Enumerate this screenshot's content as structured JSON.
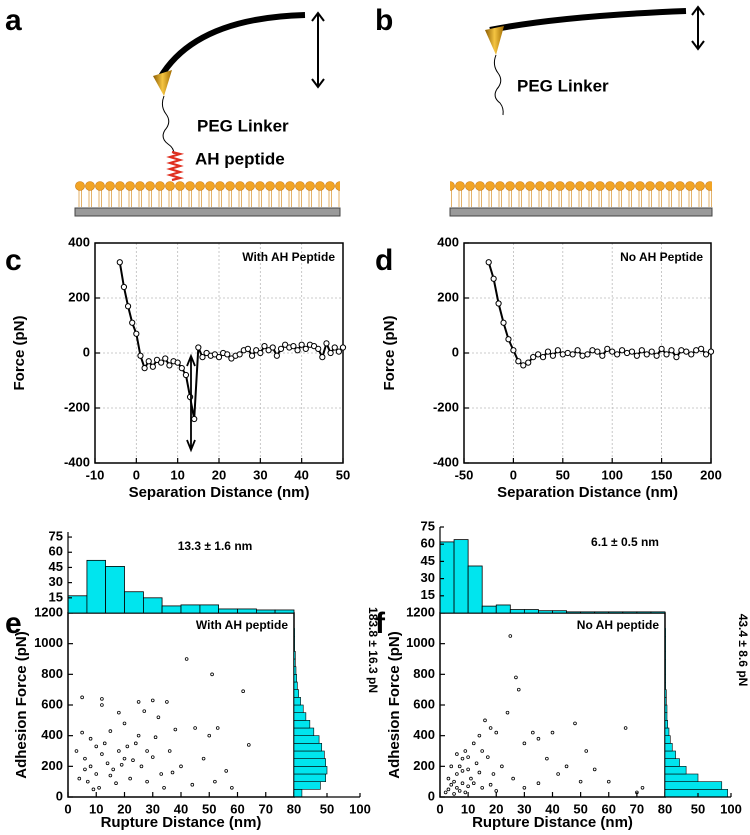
{
  "diagrams": [
    {
      "panel": "a",
      "labels": [
        "PEG Linker",
        "AH peptide"
      ]
    },
    {
      "panel": "b",
      "labels": [
        "PEG Linker"
      ]
    }
  ],
  "chart_data": [
    {
      "type": "line",
      "panel": "c",
      "annotation": "With AH Peptide",
      "xlabel": "Separation Distance (nm)",
      "ylabel": "Force (pN)",
      "x": [
        -4,
        -3,
        -2,
        -1,
        0,
        1,
        2,
        3,
        4,
        5,
        6,
        7,
        8,
        9,
        10,
        11,
        12,
        13,
        14,
        15,
        16,
        17,
        18,
        19,
        20,
        21,
        22,
        23,
        24,
        25,
        26,
        27,
        28,
        29,
        30,
        31,
        32,
        33,
        34,
        35,
        36,
        37,
        38,
        39,
        40,
        41,
        42,
        43,
        44,
        45,
        46,
        47,
        48,
        49,
        50
      ],
      "series": [
        {
          "color": "#000000",
          "values": [
            330,
            240,
            170,
            110,
            70,
            -10,
            -55,
            -30,
            -50,
            -25,
            -35,
            -20,
            -45,
            -30,
            -35,
            -55,
            -80,
            -160,
            -240,
            20,
            -15,
            0,
            -10,
            -5,
            -15,
            0,
            -5,
            -20,
            -10,
            -5,
            10,
            15,
            -10,
            10,
            0,
            25,
            10,
            20,
            -10,
            15,
            30,
            20,
            25,
            10,
            30,
            15,
            30,
            25,
            15,
            -15,
            35,
            0,
            20,
            5,
            20
          ]
        }
      ],
      "xlim": [
        -10,
        50
      ],
      "ylim": [
        -400,
        400
      ],
      "xticks": [
        -10,
        0,
        10,
        20,
        30,
        40,
        50
      ],
      "yticks": [
        -400,
        -200,
        0,
        200,
        400
      ],
      "grid": true
    },
    {
      "type": "line",
      "panel": "d",
      "annotation": "No AH Peptide",
      "xlabel": "Separation Distance (nm)",
      "ylabel": "Force (pN)",
      "x": [
        -25,
        -20,
        -15,
        -10,
        -5,
        0,
        5,
        10,
        15,
        20,
        25,
        30,
        35,
        40,
        45,
        50,
        55,
        60,
        65,
        70,
        75,
        80,
        85,
        90,
        95,
        100,
        105,
        110,
        115,
        120,
        125,
        130,
        135,
        140,
        145,
        150,
        155,
        160,
        165,
        170,
        175,
        180,
        185,
        190,
        195,
        200
      ],
      "series": [
        {
          "color": "#000000",
          "values": [
            330,
            270,
            180,
            110,
            50,
            10,
            -30,
            -45,
            -35,
            -15,
            -5,
            -15,
            5,
            -10,
            10,
            -5,
            0,
            -5,
            10,
            -10,
            -5,
            10,
            5,
            -10,
            15,
            5,
            -5,
            10,
            0,
            5,
            -10,
            10,
            -5,
            5,
            -10,
            15,
            -5,
            10,
            -15,
            10,
            5,
            -5,
            10,
            15,
            -5,
            5
          ]
        }
      ],
      "xlim": [
        -50,
        200
      ],
      "ylim": [
        -400,
        400
      ],
      "xticks": [
        -50,
        0,
        50,
        100,
        150,
        200
      ],
      "yticks": [
        -400,
        -200,
        0,
        200,
        400
      ],
      "grid": true
    },
    {
      "type": "scatter",
      "panel": "e",
      "annotation": "With AH peptide",
      "xlabel": "Rupture Distance (nm)",
      "ylabel": "Adhesion Force (pN)",
      "color": "#000000",
      "x": [
        5,
        12,
        5,
        8,
        10,
        15,
        12,
        18,
        20,
        25,
        27,
        30,
        32,
        35,
        38,
        42,
        45,
        51,
        53,
        62,
        64,
        6,
        8,
        10,
        12,
        14,
        16,
        18,
        20,
        22,
        24,
        26,
        28,
        30,
        33,
        36,
        40,
        44,
        48,
        52,
        56,
        7,
        9,
        11,
        13,
        15,
        17,
        19,
        21,
        23,
        25,
        28,
        31,
        34,
        37,
        4,
        6,
        3,
        50,
        58
      ],
      "values": [
        650,
        640,
        420,
        380,
        330,
        430,
        600,
        550,
        480,
        620,
        560,
        630,
        520,
        620,
        440,
        900,
        450,
        800,
        450,
        690,
        340,
        250,
        200,
        150,
        280,
        220,
        180,
        300,
        250,
        120,
        350,
        200,
        100,
        260,
        150,
        300,
        200,
        80,
        250,
        100,
        170,
        100,
        50,
        60,
        350,
        140,
        90,
        210,
        330,
        240,
        400,
        300,
        390,
        60,
        160,
        120,
        180,
        300,
        400,
        60
      ],
      "xlim": [
        0,
        80
      ],
      "ylim": [
        0,
        1200
      ],
      "xticks": [
        0,
        10,
        20,
        30,
        40,
        50,
        60,
        70,
        80
      ],
      "yticks": [
        0,
        200,
        400,
        600,
        800,
        1000,
        1200
      ],
      "top_histogram": {
        "bins": [
          0,
          6.7,
          13.3,
          20,
          26.7,
          33.3,
          40,
          46.7,
          53.3,
          60,
          66.7,
          73.3,
          80
        ],
        "counts": [
          17,
          52,
          46,
          21,
          15,
          7,
          8,
          8,
          4,
          4,
          3,
          3
        ],
        "color": "#00e5ee",
        "ylim": [
          0,
          80
        ],
        "yticks": [
          15,
          30,
          45,
          60,
          75
        ],
        "annotation": "13.3 ± 1.6 nm"
      },
      "right_histogram": {
        "bins": [
          0,
          50,
          100,
          150,
          200,
          250,
          300,
          350,
          400,
          450,
          500,
          550,
          600,
          650,
          700,
          750,
          800,
          850,
          900,
          950,
          1000,
          1050,
          1100,
          1150,
          1200
        ],
        "counts": [
          12,
          40,
          48,
          50,
          48,
          46,
          42,
          38,
          30,
          24,
          18,
          14,
          10,
          7,
          5,
          4,
          3,
          2,
          2,
          1,
          1,
          1,
          0,
          0
        ],
        "color": "#00e5ee",
        "xlim": [
          0,
          100
        ],
        "xticks": [
          50,
          100
        ],
        "annotation": "183.8 ± 16.3 pN"
      }
    },
    {
      "type": "scatter",
      "panel": "f",
      "annotation": "No AH peptide",
      "xlabel": "Rupture Distance (nm)",
      "ylabel": "Adhesion Force (pN)",
      "color": "#000000",
      "x": [
        5,
        6,
        7,
        8,
        9,
        10,
        11,
        12,
        13,
        14,
        15,
        16,
        17,
        18,
        19,
        20,
        22,
        24,
        25,
        27,
        28,
        30,
        33,
        35,
        38,
        40,
        42,
        45,
        48,
        50,
        52,
        55,
        60,
        66,
        70,
        3,
        4,
        5,
        6,
        7,
        8,
        9,
        10,
        4,
        6,
        8,
        10,
        12,
        14,
        3,
        2,
        15,
        18,
        20,
        26,
        30,
        35,
        72
      ],
      "values": [
        100,
        150,
        200,
        250,
        300,
        180,
        120,
        350,
        220,
        400,
        300,
        500,
        260,
        450,
        150,
        420,
        200,
        550,
        1050,
        780,
        700,
        350,
        420,
        380,
        250,
        420,
        150,
        200,
        480,
        100,
        300,
        180,
        100,
        450,
        30,
        50,
        80,
        20,
        60,
        40,
        90,
        30,
        70,
        200,
        280,
        170,
        260,
        90,
        160,
        120,
        30,
        60,
        80,
        40,
        120,
        60,
        90,
        60
      ],
      "xlim": [
        0,
        80
      ],
      "ylim": [
        0,
        1200
      ],
      "xticks": [
        0,
        10,
        20,
        30,
        40,
        50,
        60,
        70,
        80
      ],
      "yticks": [
        0,
        200,
        400,
        600,
        800,
        1000,
        1200
      ],
      "top_histogram": {
        "bins": [
          0,
          5,
          10,
          15,
          20,
          25,
          30,
          35,
          40,
          45,
          50,
          55,
          60,
          65,
          70,
          75,
          80
        ],
        "counts": [
          62,
          64,
          41,
          6,
          7,
          3,
          3,
          2,
          2,
          1,
          1,
          1,
          1,
          1,
          1,
          1
        ],
        "color": "#00e5ee",
        "ylim": [
          0,
          75
        ],
        "yticks": [
          15,
          30,
          45,
          60,
          75
        ],
        "annotation": "6.1 ± 0.5 nm"
      },
      "right_histogram": {
        "bins": [
          0,
          50,
          100,
          150,
          200,
          250,
          300,
          350,
          400,
          450,
          500,
          550,
          600,
          650,
          700,
          750,
          800,
          850,
          900,
          950,
          1000,
          1050,
          1100,
          1150,
          1200
        ],
        "counts": [
          95,
          86,
          50,
          32,
          22,
          16,
          11,
          8,
          6,
          4,
          3,
          3,
          2,
          2,
          1,
          1,
          1,
          1,
          1,
          1,
          1,
          1,
          0,
          0
        ],
        "color": "#00e5ee",
        "xlim": [
          0,
          100
        ],
        "xticks": [
          50,
          100
        ],
        "annotation": "43.4 ± 8.6 pN"
      }
    }
  ]
}
